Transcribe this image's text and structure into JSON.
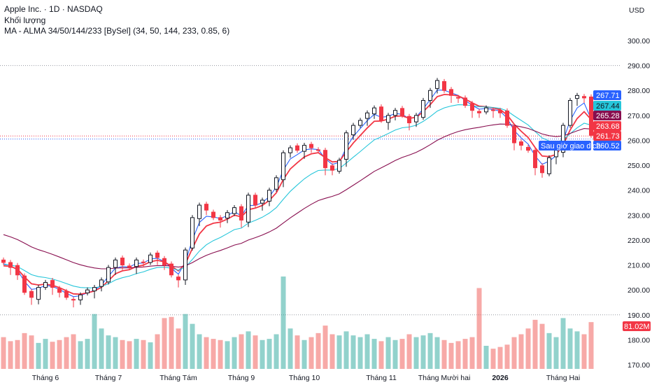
{
  "header": {
    "symbol_line": "Apple Inc. · 1D · NASDAQ",
    "volume_label": "Khối lượng",
    "ma_label": "MA - ALMA 34/50/144/233 [BySel] (34, 50, 144, 233, 0.85, 6)",
    "currency": "USD"
  },
  "chart_data": {
    "type": "candlestick",
    "title": "Apple Inc. · 1D · NASDAQ",
    "ylim": [
      170,
      300
    ],
    "y_ticks": [
      "300.00",
      "290.00",
      "280.00",
      "270.00",
      "260.00",
      "250.00",
      "240.00",
      "230.00",
      "220.00",
      "210.00",
      "200.00",
      "190.00",
      "180.00",
      "170.00"
    ],
    "y_tick_values": [
      300,
      290,
      280,
      270,
      260,
      250,
      240,
      230,
      220,
      210,
      200,
      190,
      180,
      170
    ],
    "x_ticks": [
      {
        "label": "Tháng 6",
        "index": 6,
        "bold": false
      },
      {
        "label": "Tháng 7",
        "index": 15,
        "bold": false
      },
      {
        "label": "Tháng Tám",
        "index": 25,
        "bold": false
      },
      {
        "label": "Tháng 9",
        "index": 34,
        "bold": false
      },
      {
        "label": "Tháng 10",
        "index": 43,
        "bold": false
      },
      {
        "label": "Tháng 11",
        "index": 54,
        "bold": false
      },
      {
        "label": "Tháng Mười hai",
        "index": 63,
        "bold": false
      },
      {
        "label": "2026",
        "index": 71,
        "bold": true
      },
      {
        "label": "Tháng Hai",
        "index": 80,
        "bold": false
      }
    ],
    "close": [
      211,
      209,
      206,
      199,
      197,
      201,
      203,
      201,
      199,
      197,
      196,
      198,
      200,
      201,
      204,
      209,
      212,
      210,
      209,
      212,
      211,
      214,
      213,
      210,
      206,
      204,
      216,
      229,
      234,
      232,
      229,
      228,
      231,
      233,
      228,
      238,
      234,
      236,
      240,
      245,
      255,
      257,
      256,
      258,
      257,
      256,
      249,
      248,
      252,
      263,
      266,
      268,
      271,
      273,
      268,
      270,
      272,
      270,
      267,
      270,
      276,
      280,
      284,
      280,
      278,
      277,
      274,
      272,
      271,
      273,
      272,
      271,
      266,
      259,
      258,
      256,
      249,
      247,
      253,
      256,
      266,
      276,
      278,
      277,
      262
    ],
    "volume_millions": [
      55,
      48,
      50,
      62,
      58,
      45,
      52,
      47,
      50,
      55,
      60,
      48,
      52,
      95,
      70,
      58,
      55,
      50,
      48,
      52,
      50,
      46,
      60,
      88,
      90,
      70,
      95,
      78,
      60,
      55,
      52,
      50,
      48,
      55,
      60,
      65,
      58,
      50,
      52,
      60,
      160,
      70,
      58,
      50,
      55,
      62,
      75,
      60,
      58,
      65,
      58,
      55,
      60,
      52,
      48,
      55,
      50,
      52,
      60,
      55,
      58,
      62,
      55,
      50,
      45,
      48,
      52,
      55,
      140,
      40,
      35,
      38,
      42,
      55,
      60,
      70,
      85,
      78,
      62,
      55,
      88,
      70,
      65,
      60,
      81.02
    ],
    "volume_max_millions": 160,
    "ma_series": [
      {
        "name": "ALMA 34",
        "color": "#2962ff",
        "period": 3,
        "seed": 210,
        "last": "267.71"
      },
      {
        "name": "ALMA 50",
        "color": "#f23645",
        "period": 5,
        "seed": 209,
        "last": "263.68"
      },
      {
        "name": "ALMA 144",
        "color": "#26c6da",
        "period": 12,
        "seed": 210,
        "last": "267.44"
      },
      {
        "name": "ALMA 233",
        "color": "#880e4f",
        "period": 28,
        "seed": 223,
        "last": "265.28"
      }
    ],
    "price_labels": [
      {
        "text": "267.71",
        "value": 267.71,
        "color": "#2962ff"
      },
      {
        "text": "267.44",
        "value": 267.44,
        "color": "#26c6da",
        "text_color": "#131722"
      },
      {
        "text": "265.28",
        "value": 265.28,
        "color": "#880e4f"
      },
      {
        "text": "263.68",
        "value": 263.68,
        "color": "#f23645"
      },
      {
        "text": "261.73",
        "value": 261.73,
        "color": "#f23645"
      },
      {
        "text": "260.52",
        "value": 260.52,
        "color": "#2962ff"
      }
    ],
    "after_hours_label": "Sau giờ giao dịch",
    "volume_label": "81.02M",
    "reference_lines": [
      290,
      261.73,
      260.52,
      190
    ]
  }
}
